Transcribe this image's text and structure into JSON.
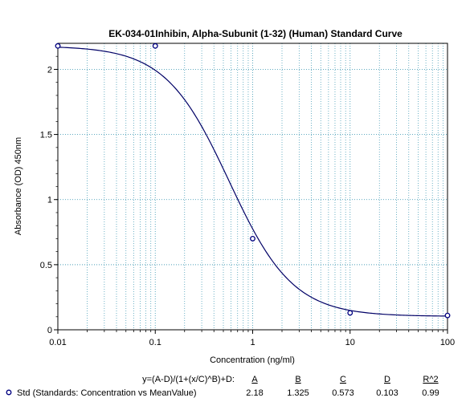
{
  "chart_data": {
    "type": "scatter",
    "title": "EK-034-01Inhibin, Alpha-Subunit (1-32) (Human) Standard Curve",
    "xlabel": "Concentration (ng/ml)",
    "ylabel": "Absorbance (OD) 450nm",
    "xscale": "log",
    "xlim": [
      0.01,
      100
    ],
    "ylim": [
      0,
      2.2
    ],
    "grid": true,
    "x_ticks": [
      "0.01",
      "0.1",
      "1",
      "10",
      "100"
    ],
    "y_ticks": [
      "0",
      "0.5",
      "1",
      "1.5",
      "2"
    ],
    "series": [
      {
        "name": "Std (Standards: Concentration vs MeanValue)",
        "points": [
          {
            "x": 0.01,
            "y": 2.18
          },
          {
            "x": 0.1,
            "y": 2.18
          },
          {
            "x": 1,
            "y": 0.7
          },
          {
            "x": 10,
            "y": 0.13
          },
          {
            "x": 100,
            "y": 0.11
          }
        ]
      }
    ],
    "fit": {
      "equation": "y=(A-D)/(1+(x/C)^B)+D:",
      "headers": [
        "A",
        "B",
        "C",
        "D",
        "R^2"
      ],
      "values": [
        "2.18",
        "1.325",
        "0.573",
        "0.103",
        "0.99"
      ],
      "params": {
        "A": 2.18,
        "B": 1.325,
        "C": 0.573,
        "D": 0.103
      }
    },
    "colors": {
      "curve": "#000066",
      "grid": "#4a9fb8",
      "marker": "#000080"
    }
  }
}
